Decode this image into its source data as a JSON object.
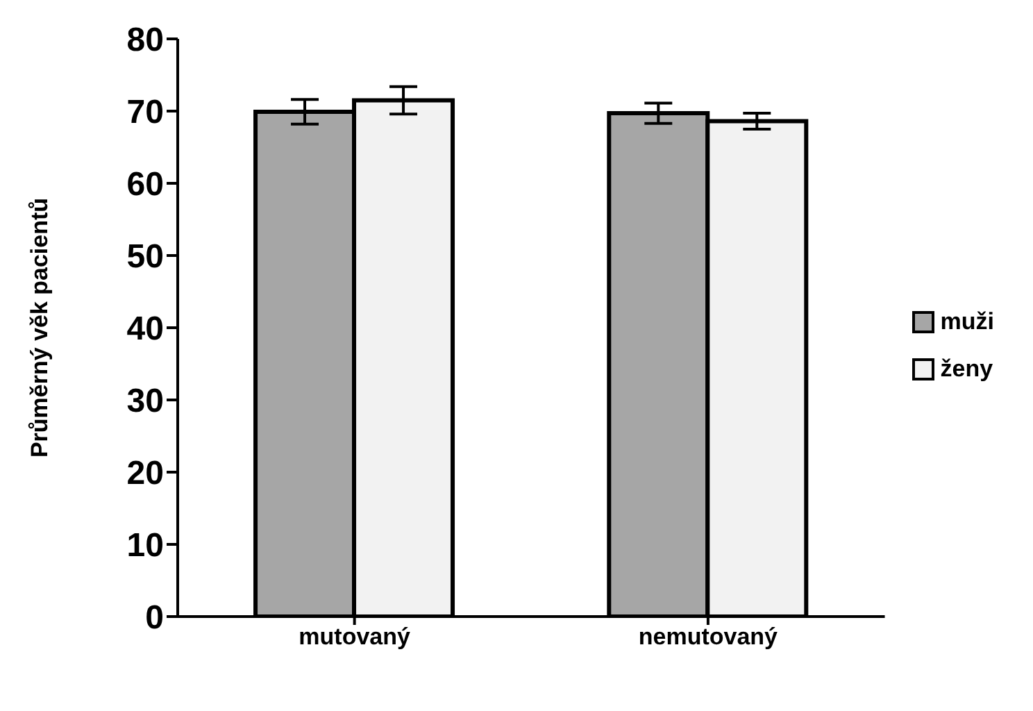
{
  "chart_data": {
    "type": "bar",
    "ylabel": "Průměrný věk pacientů",
    "categories": [
      "mutovaný",
      "nemutovaný"
    ],
    "series": [
      {
        "name": "muži",
        "color": "#a6a6a6",
        "values": [
          69.9,
          69.7
        ],
        "errors": [
          1.7,
          1.4
        ]
      },
      {
        "name": "ženy",
        "color": "#f2f2f2",
        "values": [
          71.5,
          68.6
        ],
        "errors": [
          1.9,
          1.1
        ]
      }
    ],
    "ylim": [
      0,
      80
    ],
    "yticks": [
      0,
      10,
      20,
      30,
      40,
      50,
      60,
      70,
      80
    ],
    "grid": false,
    "legend": "right"
  }
}
